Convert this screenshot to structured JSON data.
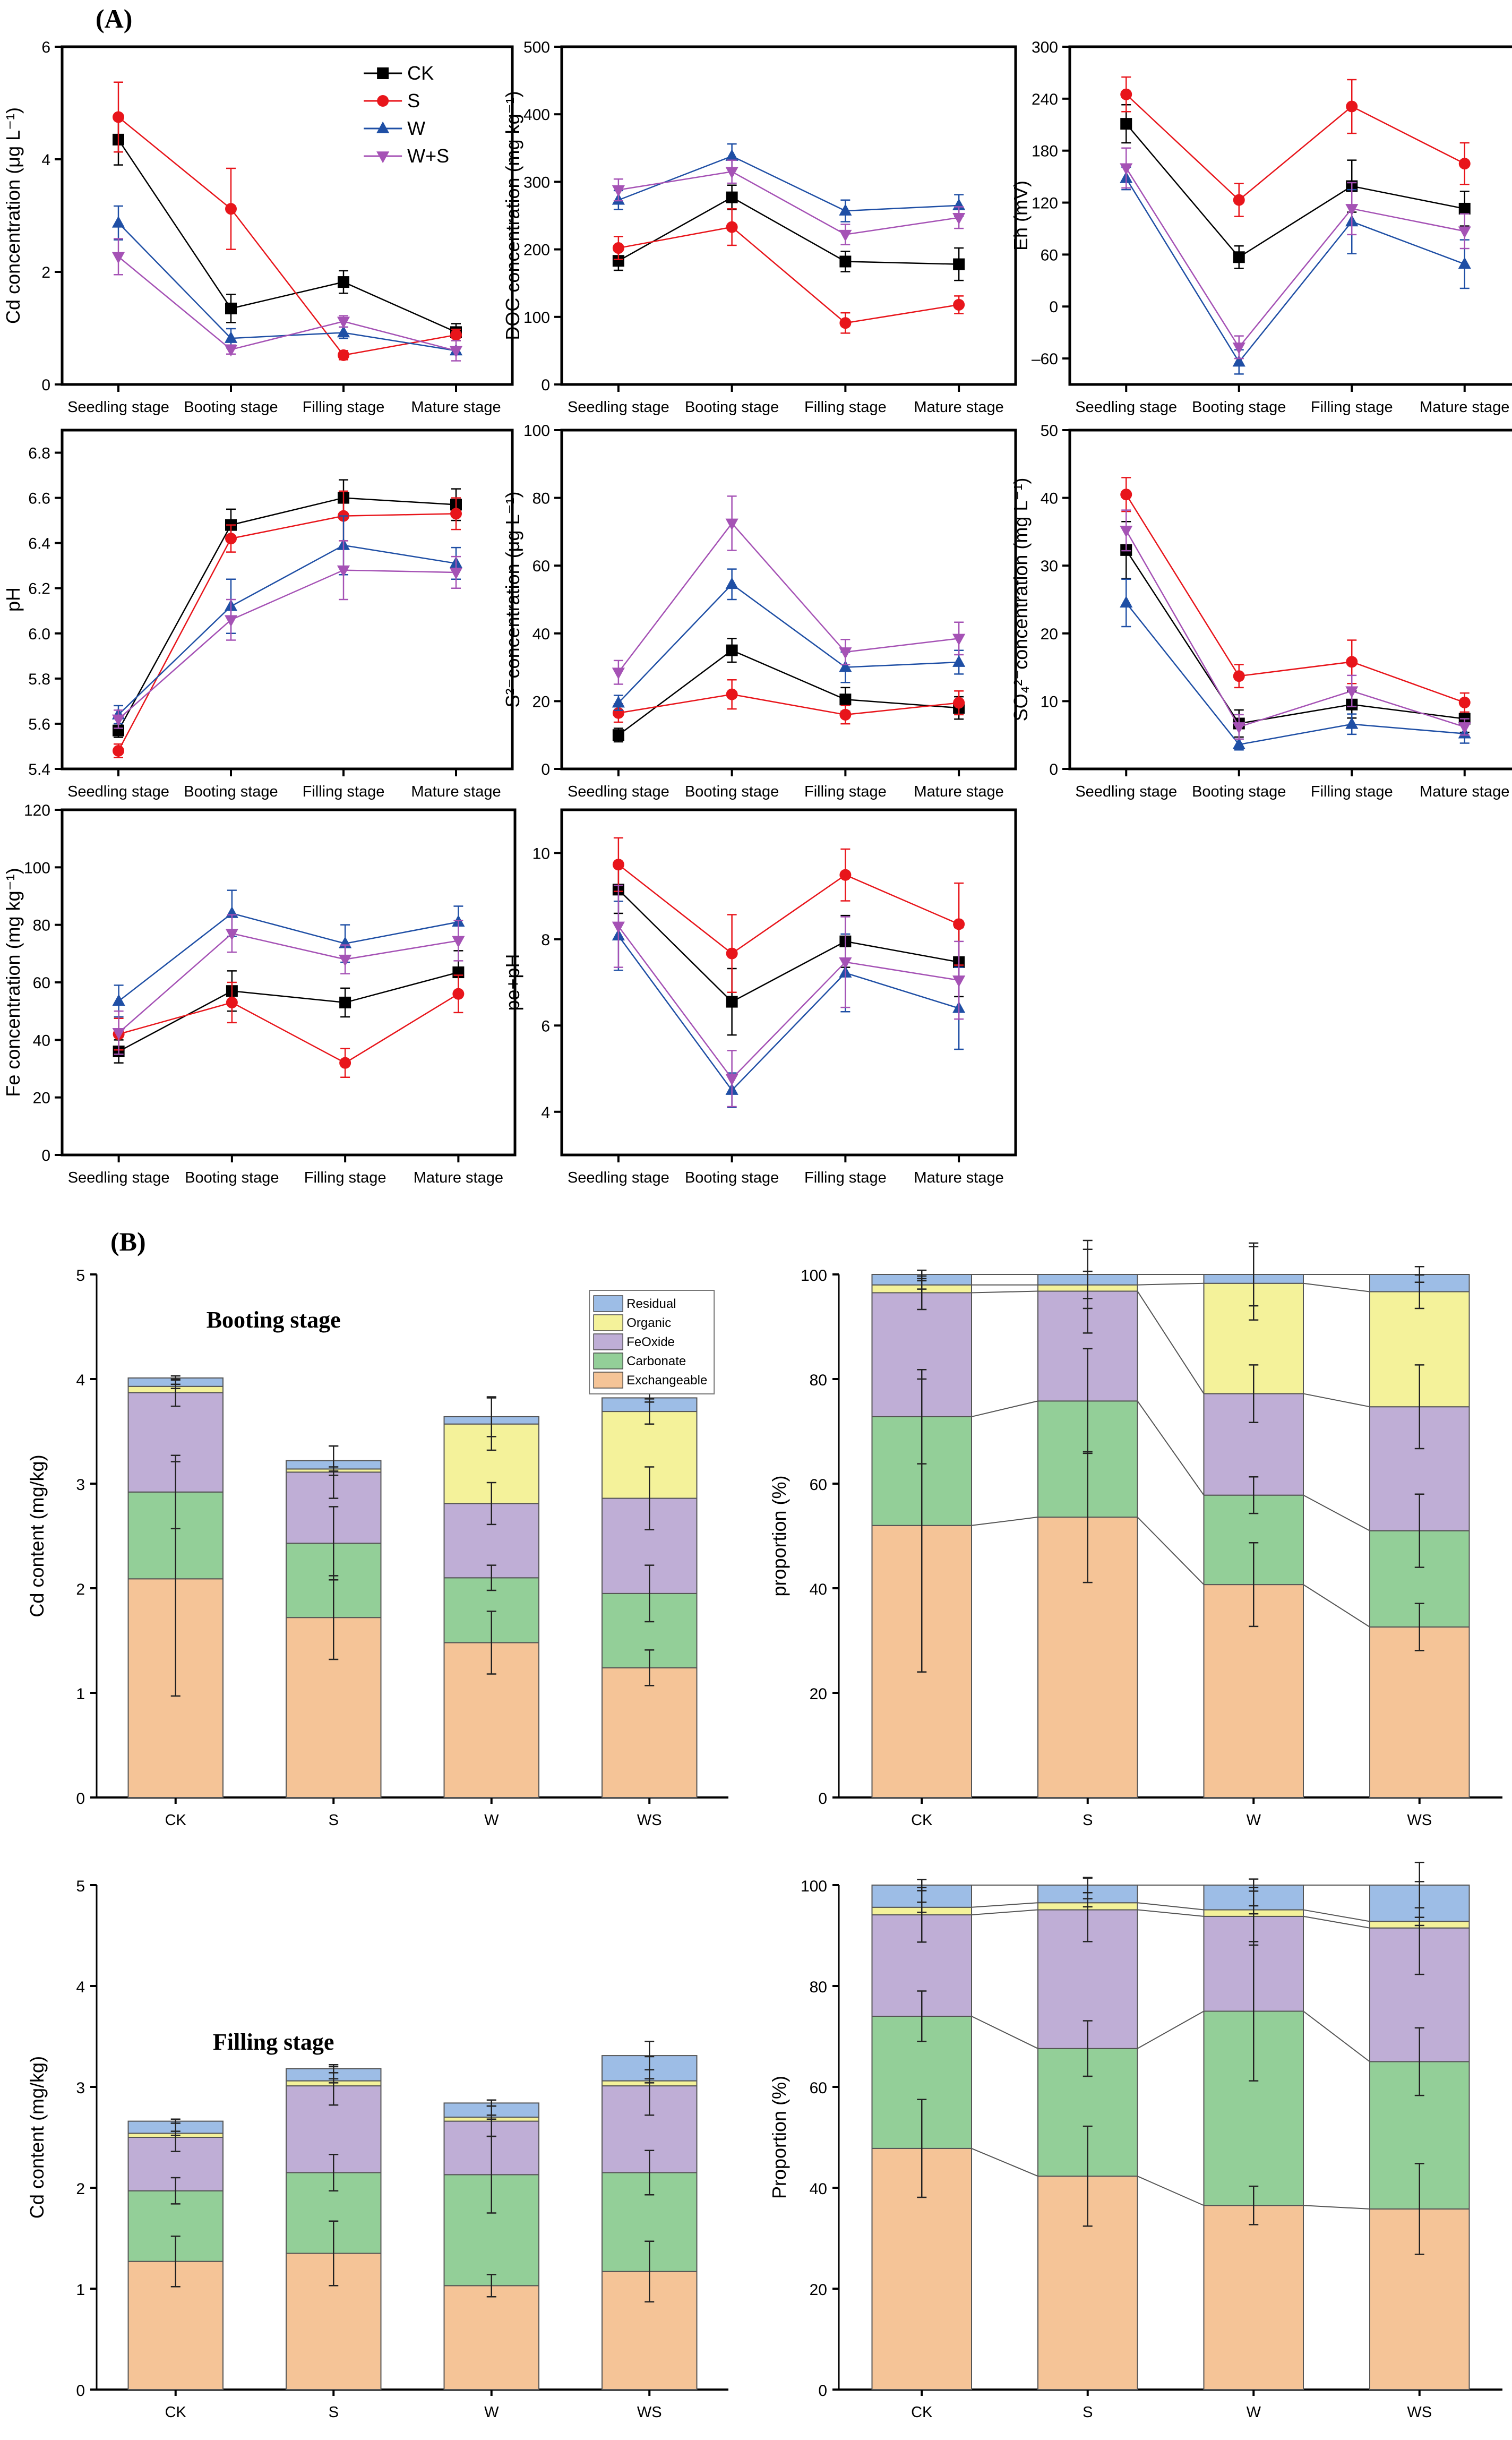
{
  "figure": {
    "panel_a_tag": "(A)",
    "panel_b_tag": "(B)"
  },
  "colors": {
    "CK": "#000000",
    "S": "#e8151b",
    "W": "#1f4fa5",
    "W+S": "#a552b5",
    "Residual": "#9dbde6",
    "Organic": "#f4f29a",
    "FeOxide": "#bfaed6",
    "Carbonate": "#93cf98",
    "Exchangeable": "#f5c497"
  },
  "legend_a": [
    {
      "name": "CK",
      "marker": "square"
    },
    {
      "name": "S",
      "marker": "circle"
    },
    {
      "name": "W",
      "marker": "triangle-up"
    },
    {
      "name": "W+S",
      "marker": "triangle-down"
    }
  ],
  "legend_b": [
    "Residual",
    "Organic",
    "FeOxide",
    "Carbonate",
    "Exchangeable"
  ],
  "chart_data": [
    {
      "id": "cd",
      "type": "line",
      "ylabel": "Cd concentration (μg L⁻¹)",
      "categories": [
        "Seedling stage",
        "Booting stage",
        "Filling stage",
        "Mature stage"
      ],
      "ylim": [
        0,
        6
      ],
      "yticks": [
        0,
        2,
        4,
        6
      ],
      "legend": "top-right",
      "series": [
        {
          "name": "CK",
          "values": [
            4.35,
            1.35,
            1.82,
            0.93
          ],
          "err": [
            0.45,
            0.25,
            0.2,
            0.15
          ]
        },
        {
          "name": "S",
          "values": [
            4.75,
            3.12,
            0.52,
            0.88
          ],
          "err": [
            0.62,
            0.72,
            0.08,
            0.1
          ]
        },
        {
          "name": "W",
          "values": [
            2.87,
            0.82,
            0.92,
            0.6
          ],
          "err": [
            0.3,
            0.17,
            0.1,
            0.05
          ]
        },
        {
          "name": "W+S",
          "values": [
            2.27,
            0.62,
            1.12,
            0.6
          ],
          "err": [
            0.32,
            0.08,
            0.1,
            0.18
          ]
        }
      ]
    },
    {
      "id": "doc",
      "type": "line",
      "ylabel": "DOC concentration (mg kg⁻¹)",
      "categories": [
        "Seedling stage",
        "Booting stage",
        "Filling stage",
        "Mature stage"
      ],
      "ylim": [
        0,
        500
      ],
      "yticks": [
        0,
        100,
        200,
        300,
        400,
        500
      ],
      "series": [
        {
          "name": "CK",
          "values": [
            183,
            277,
            182,
            178
          ],
          "err": [
            14,
            18,
            15,
            24
          ]
        },
        {
          "name": "S",
          "values": [
            202,
            233,
            91,
            118
          ],
          "err": [
            17,
            27,
            15,
            13
          ]
        },
        {
          "name": "W",
          "values": [
            273,
            338,
            257,
            265
          ],
          "err": [
            14,
            18,
            16,
            16
          ]
        },
        {
          "name": "W+S",
          "values": [
            288,
            315,
            222,
            247
          ],
          "err": [
            16,
            17,
            15,
            16
          ]
        }
      ]
    },
    {
      "id": "eh",
      "type": "line",
      "ylabel": "Eh (mV)",
      "categories": [
        "Seedling stage",
        "Booting stage",
        "Filling stage",
        "Mature stage"
      ],
      "ylim": [
        -90,
        300
      ],
      "yticks": [
        -60,
        0,
        60,
        120,
        180,
        240,
        300
      ],
      "series": [
        {
          "name": "CK",
          "values": [
            211,
            57,
            139,
            113
          ],
          "err": [
            22,
            13,
            30,
            20
          ]
        },
        {
          "name": "S",
          "values": [
            245,
            123,
            231,
            165
          ],
          "err": [
            20,
            19,
            31,
            24
          ]
        },
        {
          "name": "W",
          "values": [
            148,
            -64,
            98,
            49
          ],
          "err": [
            13,
            14,
            37,
            28
          ]
        },
        {
          "name": "W+S",
          "values": [
            160,
            -47,
            113,
            87
          ],
          "err": [
            23,
            13,
            30,
            20
          ]
        }
      ]
    },
    {
      "id": "ph",
      "type": "line",
      "ylabel": "pH",
      "categories": [
        "Seedling stage",
        "Booting stage",
        "Filling stage",
        "Mature stage"
      ],
      "ylim": [
        5.4,
        6.9
      ],
      "yticks": [
        5.4,
        5.6,
        5.8,
        6.0,
        6.2,
        6.4,
        6.6,
        6.8
      ],
      "series": [
        {
          "name": "CK",
          "values": [
            5.57,
            6.48,
            6.6,
            6.57
          ],
          "err": [
            0.03,
            0.07,
            0.08,
            0.07
          ]
        },
        {
          "name": "S",
          "values": [
            5.48,
            6.42,
            6.52,
            6.53
          ],
          "err": [
            0.03,
            0.06,
            0.11,
            0.07
          ]
        },
        {
          "name": "W",
          "values": [
            5.64,
            6.12,
            6.39,
            6.31
          ],
          "err": [
            0.04,
            0.12,
            0.13,
            0.07
          ]
        },
        {
          "name": "W+S",
          "values": [
            5.62,
            6.06,
            6.28,
            6.27
          ],
          "err": [
            0.04,
            0.09,
            0.13,
            0.07
          ]
        }
      ]
    },
    {
      "id": "s2",
      "type": "line",
      "ylabel": "S²⁻concentration (μg L⁻¹)",
      "categories": [
        "Seedling stage",
        "Booting stage",
        "Filling stage",
        "Mature stage"
      ],
      "ylim": [
        0,
        100
      ],
      "yticks": [
        0,
        20,
        40,
        60,
        80,
        100
      ],
      "series": [
        {
          "name": "CK",
          "values": [
            10,
            35,
            20.5,
            18
          ],
          "err": [
            2,
            3.5,
            3.5,
            3.3
          ]
        },
        {
          "name": "S",
          "values": [
            16.5,
            22,
            16,
            19.5
          ],
          "err": [
            2.7,
            4.3,
            2.7,
            3.5
          ]
        },
        {
          "name": "W",
          "values": [
            19.5,
            54.5,
            30,
            31.5
          ],
          "err": [
            2.2,
            4.5,
            4.5,
            3.5
          ]
        },
        {
          "name": "W+S",
          "values": [
            28.5,
            72.5,
            34.5,
            38.5
          ],
          "err": [
            3.5,
            8,
            3.7,
            4.8
          ]
        }
      ]
    },
    {
      "id": "so4",
      "type": "line",
      "ylabel": "SO₄²⁻concentration (mg L⁻¹)",
      "categories": [
        "Seedling stage",
        "Booting stage",
        "Filling stage",
        "Mature stage"
      ],
      "ylim": [
        0,
        50
      ],
      "yticks": [
        0,
        10,
        20,
        30,
        40,
        50
      ],
      "series": [
        {
          "name": "CK",
          "values": [
            32.3,
            6.7,
            9.5,
            7.4
          ],
          "err": [
            4.2,
            2.0,
            2.0,
            2.0
          ]
        },
        {
          "name": "S",
          "values": [
            40.5,
            13.7,
            15.8,
            9.8
          ],
          "err": [
            2.5,
            1.7,
            3.2,
            1.4
          ]
        },
        {
          "name": "W",
          "values": [
            24.5,
            3.6,
            6.6,
            5.2
          ],
          "err": [
            3.5,
            0.8,
            1.5,
            1.4
          ]
        },
        {
          "name": "W+S",
          "values": [
            35.2,
            6.2,
            11.5,
            6.2
          ],
          "err": [
            3.0,
            1.8,
            2.3,
            1.2
          ]
        }
      ]
    },
    {
      "id": "fe",
      "type": "line",
      "ylabel": "Fe concentration (mg kg⁻¹)",
      "categories": [
        "Seedling stage",
        "Booting stage",
        "Filling stage",
        "Mature stage"
      ],
      "ylim": [
        0,
        120
      ],
      "yticks": [
        0,
        20,
        40,
        60,
        80,
        100,
        120
      ],
      "series": [
        {
          "name": "CK",
          "values": [
            36,
            57,
            53,
            63.5
          ],
          "err": [
            4,
            7,
            5,
            7.5
          ]
        },
        {
          "name": "S",
          "values": [
            42,
            53,
            32,
            56
          ],
          "err": [
            5.5,
            7,
            5,
            6.5
          ]
        },
        {
          "name": "W",
          "values": [
            53.5,
            84,
            73.5,
            81
          ],
          "err": [
            5.5,
            8,
            6.5,
            5.5
          ]
        },
        {
          "name": "W+S",
          "values": [
            42.5,
            77,
            68,
            74.5
          ],
          "err": [
            7.5,
            6.5,
            5,
            7
          ]
        }
      ]
    },
    {
      "id": "pepH",
      "type": "line",
      "ylabel": "pe+pH",
      "categories": [
        "Seedling stage",
        "Booting stage",
        "Filling stage",
        "Mature stage"
      ],
      "ylim": [
        3,
        11
      ],
      "yticks": [
        4,
        6,
        8,
        10
      ],
      "series": [
        {
          "name": "CK",
          "values": [
            9.15,
            6.55,
            7.95,
            7.47
          ],
          "err": [
            0.55,
            0.77,
            0.6,
            0.8
          ]
        },
        {
          "name": "S",
          "values": [
            9.73,
            7.67,
            9.49,
            8.35
          ],
          "err": [
            0.62,
            0.9,
            0.6,
            0.95
          ]
        },
        {
          "name": "W",
          "values": [
            8.08,
            4.5,
            7.22,
            6.4
          ],
          "err": [
            0.8,
            0.4,
            0.9,
            0.95
          ]
        },
        {
          "name": "W+S",
          "values": [
            8.3,
            4.77,
            7.47,
            7.05
          ],
          "err": [
            0.95,
            0.65,
            1.05,
            0.9
          ]
        }
      ]
    },
    {
      "id": "booting_content",
      "type": "bar",
      "stacked": true,
      "title": "Booting stage",
      "ylabel": "Cd content (mg/kg)",
      "categories": [
        "CK",
        "S",
        "W",
        "WS"
      ],
      "ylim": [
        0,
        5
      ],
      "yticks": [
        0,
        1,
        2,
        3,
        4,
        5
      ],
      "legend": "top-right",
      "series": [
        {
          "name": "Exchangeable",
          "values": [
            2.09,
            1.72,
            1.48,
            1.24
          ],
          "err": [
            1.12,
            0.4,
            0.3,
            0.17
          ]
        },
        {
          "name": "Carbonate",
          "values": [
            0.83,
            0.71,
            0.62,
            0.71
          ],
          "err": [
            0.35,
            0.35,
            0.12,
            0.27
          ]
        },
        {
          "name": "FeOxide",
          "values": [
            0.95,
            0.68,
            0.71,
            0.91
          ],
          "err": [
            0.13,
            0.25,
            0.2,
            0.3
          ]
        },
        {
          "name": "Organic",
          "values": [
            0.06,
            0.03,
            0.76,
            0.83
          ],
          "err": [
            0.02,
            0.02,
            0.25,
            0.12
          ]
        },
        {
          "name": "Residual",
          "values": [
            0.08,
            0.08,
            0.07,
            0.13
          ],
          "err": [
            0.02,
            0.14,
            0.19,
            0.04
          ]
        }
      ]
    },
    {
      "id": "booting_proportion",
      "type": "bar",
      "stacked": true,
      "ylabel": "proportion (%)",
      "categories": [
        "CK",
        "S",
        "W",
        "WS"
      ],
      "ylim": [
        0,
        100
      ],
      "yticks": [
        0,
        20,
        40,
        60,
        80,
        100
      ],
      "series": [
        {
          "name": "Exchangeable",
          "values": [
            52.0,
            53.6,
            40.7,
            32.6
          ],
          "err": [
            28,
            12.5,
            8,
            4.5
          ]
        },
        {
          "name": "Carbonate",
          "values": [
            20.8,
            22.2,
            17.1,
            18.4
          ],
          "err": [
            9,
            10,
            3.5,
            7
          ]
        },
        {
          "name": "FeOxide",
          "values": [
            23.7,
            21.0,
            19.4,
            23.7
          ],
          "err": [
            3.2,
            8,
            5.5,
            8
          ]
        },
        {
          "name": "Organic",
          "values": [
            1.5,
            1.2,
            21.1,
            22.0
          ],
          "err": [
            0.8,
            2.6,
            7,
            3.2
          ]
        },
        {
          "name": "Residual",
          "values": [
            2.0,
            2.0,
            1.7,
            3.3
          ],
          "err": [
            0.8,
            6.5,
            6,
            1.5
          ]
        }
      ]
    },
    {
      "id": "filling_content",
      "type": "bar",
      "stacked": true,
      "title": "Filling stage",
      "ylabel": "Cd content (mg/kg)",
      "categories": [
        "CK",
        "S",
        "W",
        "WS"
      ],
      "ylim": [
        0,
        5
      ],
      "yticks": [
        0,
        1,
        2,
        3,
        4,
        5
      ],
      "series": [
        {
          "name": "Exchangeable",
          "values": [
            1.27,
            1.35,
            1.03,
            1.17
          ],
          "err": [
            0.25,
            0.32,
            0.11,
            0.3
          ]
        },
        {
          "name": "Carbonate",
          "values": [
            0.7,
            0.8,
            1.1,
            0.98
          ],
          "err": [
            0.13,
            0.18,
            0.38,
            0.22
          ]
        },
        {
          "name": "FeOxide",
          "values": [
            0.53,
            0.86,
            0.53,
            0.86
          ],
          "err": [
            0.14,
            0.19,
            0.15,
            0.29
          ]
        },
        {
          "name": "Organic",
          "values": [
            0.04,
            0.05,
            0.04,
            0.05
          ],
          "err": [
            0.02,
            0.02,
            0.02,
            0.02
          ]
        },
        {
          "name": "Residual",
          "values": [
            0.12,
            0.12,
            0.14,
            0.25
          ],
          "err": [
            0.02,
            0.04,
            0.03,
            0.14
          ]
        }
      ]
    },
    {
      "id": "filling_proportion",
      "type": "bar",
      "stacked": true,
      "ylabel": "Proportion (%)",
      "categories": [
        "CK",
        "S",
        "W",
        "WS"
      ],
      "ylim": [
        0,
        100
      ],
      "yticks": [
        0,
        20,
        40,
        60,
        80,
        100
      ],
      "series": [
        {
          "name": "Exchangeable",
          "values": [
            47.8,
            42.3,
            36.5,
            35.8
          ],
          "err": [
            9.7,
            9.9,
            3.8,
            9.0
          ]
        },
        {
          "name": "Carbonate",
          "values": [
            26.2,
            25.3,
            38.5,
            29.2
          ],
          "err": [
            5.0,
            5.5,
            13.8,
            6.7
          ]
        },
        {
          "name": "FeOxide",
          "values": [
            20.1,
            27.5,
            18.8,
            26.5
          ],
          "err": [
            5.4,
            6.3,
            5.7,
            9.2
          ]
        },
        {
          "name": "Organic",
          "values": [
            1.5,
            1.4,
            1.3,
            1.3
          ],
          "err": [
            1.0,
            0.8,
            0.8,
            0.8
          ]
        },
        {
          "name": "Residual",
          "values": [
            4.4,
            3.5,
            4.9,
            7.2
          ],
          "err": [
            1.1,
            1.5,
            1.2,
            4.5
          ]
        }
      ]
    }
  ]
}
